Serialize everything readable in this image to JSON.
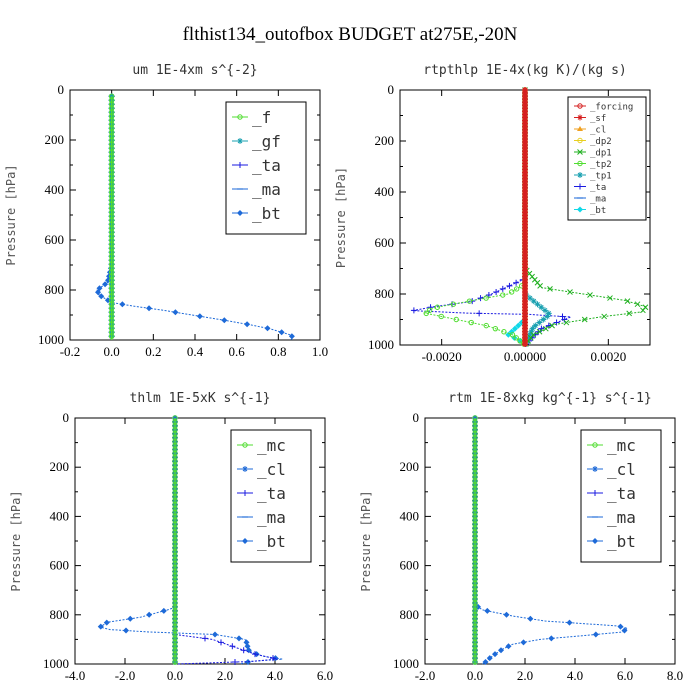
{
  "title": "flthist134_outofbox  BUDGET at275E,-20N",
  "colors": {
    "red": "#d62020",
    "orange": "#f0a020",
    "gold": "#e8d020",
    "green": "#20b020",
    "lime": "#50dd30",
    "blue": "#1e6ad8",
    "navy": "#1a1ae0",
    "teal": "#18a0b0",
    "cyan": "#10d8e8"
  },
  "chart_data": [
    {
      "type": "line",
      "title": "um  1E-4xm s^{-2}",
      "ylabel": "Pressure [hPa]",
      "xlim": [
        -0.2,
        1.0
      ],
      "ylim": [
        1000,
        0
      ],
      "xticks": [
        "-0.2",
        "0.0",
        "0.2",
        "0.4",
        "0.6",
        "0.8",
        "1.0"
      ],
      "yticks": [
        "0",
        "200",
        "400",
        "600",
        "800",
        "1000"
      ],
      "legend_size": "large",
      "series": [
        {
          "name": "_f",
          "color": "lime",
          "marker": "o",
          "x": [
            0,
            0
          ],
          "y": [
            25,
            1000
          ]
        },
        {
          "name": "_gf",
          "color": "teal",
          "marker": "*",
          "x": [
            0,
            0
          ],
          "y": [
            25,
            1000
          ]
        },
        {
          "name": "_ta",
          "color": "navy",
          "marker": "+",
          "x": [
            0,
            0
          ],
          "y": [
            25,
            1000
          ]
        },
        {
          "name": "_ma",
          "color": "blue",
          "marker": "-",
          "x": [
            0,
            0
          ],
          "y": [
            25,
            1000
          ]
        },
        {
          "name": "_bt",
          "color": "blue",
          "marker": "d",
          "x": [
            0.0,
            0.0,
            0.0,
            0.0,
            -0.02,
            -0.07,
            -0.06,
            -0.02,
            0.0,
            0.11,
            0.24,
            0.35,
            0.46,
            0.57,
            0.67,
            0.76,
            0.82,
            0.86,
            0.87,
            0.86
          ],
          "y": [
            25,
            200,
            400,
            700,
            770,
            800,
            820,
            840,
            850,
            865,
            880,
            895,
            910,
            925,
            940,
            955,
            970,
            980,
            990,
            1000
          ]
        }
      ]
    },
    {
      "type": "line",
      "title": "rtpthlp  1E-4x(kg K)/(kg s)",
      "ylabel": "Pressure [hPa]",
      "xlim": [
        -0.003,
        0.003
      ],
      "ylim": [
        1000,
        0
      ],
      "xticks": [
        "-0.0020",
        "0.00000",
        "0.0020"
      ],
      "yticks": [
        "0",
        "200",
        "400",
        "600",
        "800",
        "1000"
      ],
      "legend_size": "small",
      "series": [
        {
          "name": "_forcing",
          "color": "red",
          "marker": "o",
          "x": [
            0,
            0
          ],
          "y": [
            0,
            1000
          ]
        },
        {
          "name": "_sf",
          "color": "red",
          "marker": "*",
          "x": [
            0,
            0
          ],
          "y": [
            0,
            1000
          ]
        },
        {
          "name": "_cl",
          "color": "orange",
          "marker": "^",
          "x": [
            0,
            0
          ],
          "y": [
            0,
            1000
          ]
        },
        {
          "name": "_dp2",
          "color": "gold",
          "marker": "o",
          "x": [
            0,
            0
          ],
          "y": [
            0,
            1000
          ]
        },
        {
          "name": "_dp1",
          "color": "green",
          "marker": "x",
          "x": [
            0.0,
            0.0,
            0.0004,
            0.0014,
            0.0024,
            0.0029,
            0.0028,
            0.0018,
            0.0007,
            0.0002,
            0.0
          ],
          "y": [
            0,
            700,
            775,
            800,
            825,
            850,
            870,
            890,
            920,
            960,
            1000
          ]
        },
        {
          "name": "_tp2",
          "color": "lime",
          "marker": "o",
          "x": [
            0.0,
            0.0,
            -0.0004,
            -0.0014,
            -0.0022,
            -0.0024,
            -0.0018,
            -0.0009,
            -0.0003,
            0.0
          ],
          "y": [
            0,
            760,
            800,
            830,
            855,
            875,
            895,
            925,
            960,
            1000
          ]
        },
        {
          "name": "_tp1",
          "color": "teal",
          "marker": "*",
          "x": [
            0.0,
            0.0,
            0.0003,
            0.0006,
            0.0002,
            0.0
          ],
          "y": [
            0,
            800,
            840,
            880,
            930,
            1000
          ]
        },
        {
          "name": "_ta",
          "color": "navy",
          "marker": "+",
          "x": [
            0.0,
            0.0,
            -0.0004,
            -0.0008,
            -0.0013,
            -0.0022,
            -0.0027,
            -0.0014,
            0.0001,
            0.0011,
            0.0004,
            0.0
          ],
          "y": [
            0,
            740,
            770,
            800,
            830,
            850,
            865,
            875,
            880,
            890,
            935,
            1000
          ]
        },
        {
          "name": "_ma",
          "color": "blue",
          "marker": "-",
          "x": [
            0,
            0
          ],
          "y": [
            0,
            1000
          ]
        },
        {
          "name": "_bt",
          "color": "cyan",
          "marker": "d",
          "x": [
            0.0,
            0.0,
            -0.0004,
            -0.0001,
            0.0,
            0.0
          ],
          "y": [
            0,
            900,
            960,
            985,
            995,
            1000
          ]
        }
      ]
    },
    {
      "type": "line",
      "title": "thlm  1E-5xK s^{-1}",
      "ylabel": "Pressure [hPa]",
      "xlim": [
        -4.0,
        6.0
      ],
      "ylim": [
        1000,
        0
      ],
      "xticks": [
        "-4.0",
        "-2.0",
        "0.0",
        "2.0",
        "4.0",
        "6.0"
      ],
      "yticks": [
        "0",
        "200",
        "400",
        "600",
        "800",
        "1000"
      ],
      "legend_size": "large",
      "series": [
        {
          "name": "_mc",
          "color": "lime",
          "marker": "o",
          "x": [
            0,
            0
          ],
          "y": [
            0,
            1000
          ]
        },
        {
          "name": "_cl",
          "color": "blue",
          "marker": "*",
          "x": [
            0,
            0
          ],
          "y": [
            0,
            1000
          ]
        },
        {
          "name": "_ta",
          "color": "navy",
          "marker": "+",
          "x": [
            0.0,
            0.0,
            0.0,
            1.5,
            3.2,
            4.1,
            3.0,
            1.5,
            0.0
          ],
          "y": [
            0,
            780,
            880,
            900,
            960,
            980,
            990,
            995,
            1000
          ]
        },
        {
          "name": "_ma",
          "color": "blue",
          "marker": "-",
          "x": [
            0,
            0
          ],
          "y": [
            0,
            1000
          ]
        },
        {
          "name": "_bt",
          "color": "blue",
          "marker": "d",
          "x": [
            0.0,
            0.0,
            -0.3,
            -1.4,
            -2.7,
            -3.0,
            -2.6,
            -1.0,
            1.6,
            2.8,
            2.9,
            2.9,
            3.1,
            3.6,
            4.3,
            3.0,
            2.6
          ],
          "y": [
            0,
            770,
            780,
            810,
            830,
            850,
            860,
            870,
            880,
            900,
            920,
            940,
            955,
            970,
            980,
            990,
            1000
          ]
        }
      ]
    },
    {
      "type": "line",
      "title": "rtm  1E-8xkg kg^{-1} s^{-1}",
      "ylabel": "Pressure [hPa]",
      "xlim": [
        -2.0,
        8.0
      ],
      "ylim": [
        1000,
        0
      ],
      "xticks": [
        "-2.0",
        "0.0",
        "2.0",
        "4.0",
        "6.0",
        "8.0"
      ],
      "yticks": [
        "0",
        "200",
        "400",
        "600",
        "800",
        "1000"
      ],
      "legend_size": "large",
      "series": [
        {
          "name": "_mc",
          "color": "lime",
          "marker": "o",
          "x": [
            0,
            0
          ],
          "y": [
            0,
            1000
          ]
        },
        {
          "name": "_cl",
          "color": "blue",
          "marker": "*",
          "x": [
            0,
            0
          ],
          "y": [
            0,
            1000
          ]
        },
        {
          "name": "_ta",
          "color": "navy",
          "marker": "+",
          "x": [
            0,
            0
          ],
          "y": [
            0,
            1000
          ]
        },
        {
          "name": "_ma",
          "color": "blue",
          "marker": "-",
          "x": [
            0,
            0
          ],
          "y": [
            0,
            1000
          ]
        },
        {
          "name": "_bt",
          "color": "blue",
          "marker": "d",
          "x": [
            0.0,
            0.0,
            0.3,
            1.5,
            2.8,
            4.2,
            5.7,
            6.1,
            5.9,
            4.3,
            2.6,
            1.5,
            1.1,
            0.8,
            0.6,
            0.45,
            0.3
          ],
          "y": [
            0,
            760,
            780,
            805,
            825,
            835,
            845,
            855,
            870,
            885,
            900,
            920,
            940,
            960,
            975,
            990,
            1000
          ]
        }
      ]
    }
  ]
}
